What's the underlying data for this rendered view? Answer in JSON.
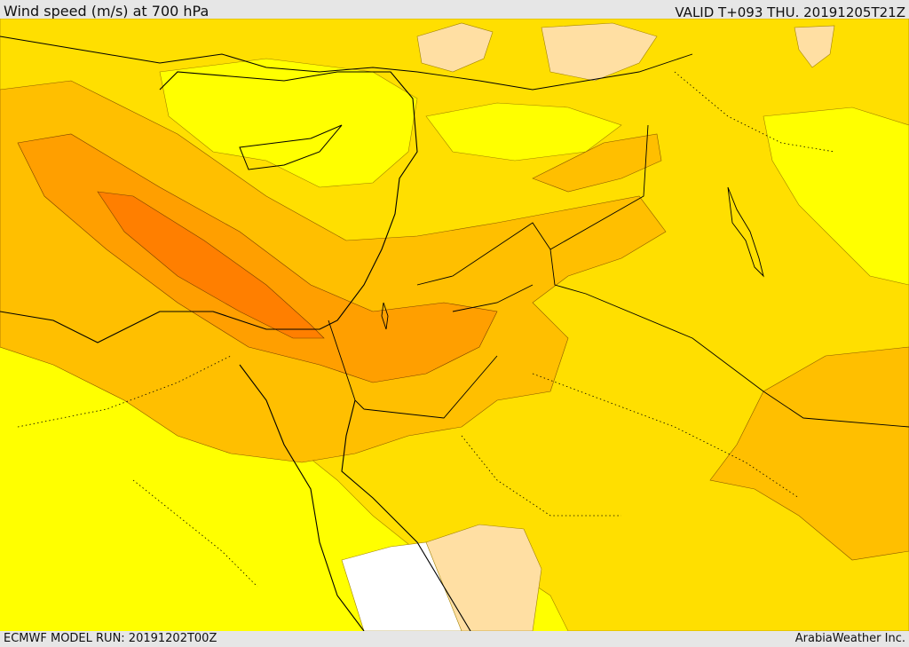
{
  "header": {
    "title": "Wind speed (m/s) at 700 hPa",
    "valid_time": "VALID T+093 THU. 20191205T21Z"
  },
  "footer": {
    "model_run": "ECMWF MODEL RUN: 20191202T00Z",
    "credit": "ArabiaWeather Inc."
  },
  "map": {
    "colors": {
      "calm": "#ffffff",
      "very_light": "#ffdfa3",
      "light": "#ffff00",
      "moderate": "#ffdf00",
      "fresh": "#ffbf00",
      "strong": "#ff9f00",
      "very_strong": "#ff7f00"
    }
  }
}
